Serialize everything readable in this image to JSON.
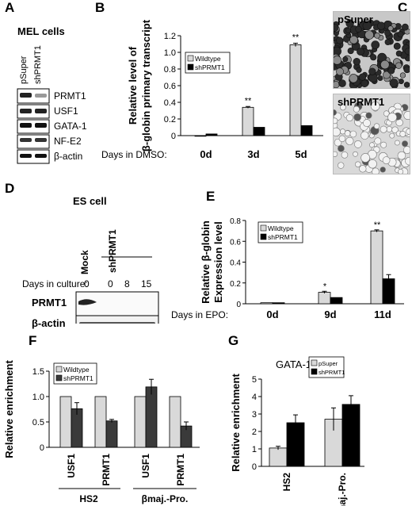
{
  "panels": {
    "A": {
      "label": "A",
      "title": "MEL cells",
      "lanes": [
        "pSuper",
        "shPRMT1"
      ],
      "blots": [
        "PRMT1",
        "USF1",
        "GATA-1",
        "NF-E2",
        "β-actin"
      ]
    },
    "B": {
      "label": "B",
      "legend": [
        "Wildtype",
        "shPRMT1"
      ],
      "days_label": "Days in DMSO:",
      "significance": [
        "**",
        "**"
      ]
    },
    "C": {
      "label": "C",
      "images": [
        "pSuper",
        "shPRMT1"
      ]
    },
    "D": {
      "label": "D",
      "title": "ES cell",
      "lanes": [
        "Mock",
        "shPRMT1"
      ],
      "days_label": "Days in culture:",
      "days": [
        "0",
        "0",
        "8",
        "15"
      ],
      "blots": [
        "PRMT1",
        "β-actin"
      ]
    },
    "E": {
      "label": "E",
      "legend": [
        "Wildtype",
        "shPRMT1"
      ],
      "days_label": "Days in EPO:",
      "significance": [
        "*",
        "**"
      ]
    },
    "F": {
      "label": "F",
      "legend": [
        "Wildtype",
        "shPRMT1"
      ],
      "groups": [
        "HS2",
        "βmaj.-Pro."
      ]
    },
    "G": {
      "label": "G",
      "title": "GATA-1",
      "legend": [
        "pSuper",
        "shPRMT1"
      ]
    }
  },
  "chart_data": [
    {
      "panel": "B",
      "type": "bar",
      "categories": [
        "0d",
        "3d",
        "5d"
      ],
      "ylabel": "Relative level of β-globin primary transcript",
      "ylim": [
        0,
        1.2
      ],
      "yticks": [
        "0",
        "0.2",
        "0.4",
        "0.6",
        "0.8",
        "1.0",
        "1.2"
      ],
      "colors": [
        "#d9d9d9",
        "#000000"
      ],
      "series": [
        {
          "name": "Wildtype",
          "values": [
            0.0,
            0.34,
            1.09
          ],
          "errors": [
            0,
            0.01,
            0.02
          ]
        },
        {
          "name": "shPRMT1",
          "values": [
            0.02,
            0.1,
            0.12
          ],
          "errors": [
            0,
            0,
            0
          ]
        }
      ]
    },
    {
      "panel": "E",
      "type": "bar",
      "categories": [
        "0d",
        "9d",
        "11d"
      ],
      "ylabel": "Relative β-globin Expression level",
      "ylim": [
        0,
        0.8
      ],
      "yticks": [
        "0",
        "0.2",
        "0.4",
        "0.6",
        "0.8"
      ],
      "colors": [
        "#d9d9d9",
        "#000000"
      ],
      "series": [
        {
          "name": "Wildtype",
          "values": [
            0.01,
            0.11,
            0.7
          ],
          "errors": [
            0,
            0.01,
            0.01
          ]
        },
        {
          "name": "shPRMT1",
          "values": [
            0.01,
            0.06,
            0.24
          ],
          "errors": [
            0,
            0,
            0.04
          ]
        }
      ]
    },
    {
      "panel": "F",
      "type": "bar",
      "categories": [
        "USF1",
        "PRMT1",
        "USF1",
        "PRMT1"
      ],
      "ylabel": "Relative enrichment",
      "ylim": [
        0,
        1.5
      ],
      "yticks": [
        "0",
        "0.5",
        "1.0",
        "1.5"
      ],
      "colors": [
        "#d9d9d9",
        "#3a3a3a"
      ],
      "series": [
        {
          "name": "Wildtype",
          "values": [
            1.0,
            1.0,
            1.0,
            1.0
          ],
          "errors": [
            0,
            0,
            0,
            0
          ]
        },
        {
          "name": "shPRMT1",
          "values": [
            0.76,
            0.52,
            1.19,
            0.42
          ],
          "errors": [
            0.12,
            0.03,
            0.15,
            0.08
          ]
        }
      ]
    },
    {
      "panel": "G",
      "type": "bar",
      "categories": [
        "HS2",
        "βmaj.-Pro."
      ],
      "ylabel": "Relative enrichment",
      "ylim": [
        0,
        5
      ],
      "yticks": [
        "0",
        "1",
        "2",
        "3",
        "4",
        "5"
      ],
      "colors": [
        "#d9d9d9",
        "#000000"
      ],
      "series": [
        {
          "name": "pSuper",
          "values": [
            1.05,
            2.7
          ],
          "errors": [
            0.1,
            0.65
          ]
        },
        {
          "name": "shPRMT1",
          "values": [
            2.5,
            3.55
          ],
          "errors": [
            0.45,
            0.5
          ]
        }
      ]
    }
  ]
}
